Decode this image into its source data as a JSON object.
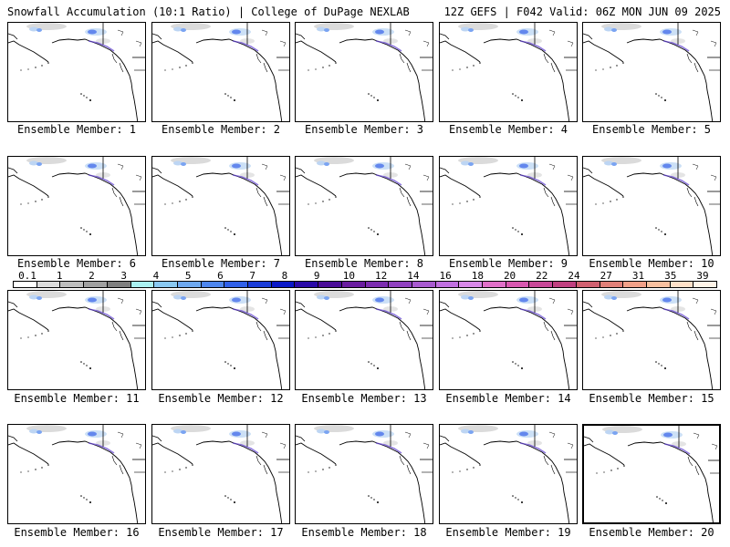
{
  "header": {
    "title": "Snowfall Accumulation (10:1 Ratio) | College of DuPage NEXLAB",
    "run_info": "12Z GEFS | F042 Valid: 06Z MON JUN 09 2025"
  },
  "panel_label_prefix": "Ensemble Member:",
  "members": [
    {
      "label": "Ensemble Member: 1"
    },
    {
      "label": "Ensemble Member: 2"
    },
    {
      "label": "Ensemble Member: 3"
    },
    {
      "label": "Ensemble Member: 4"
    },
    {
      "label": "Ensemble Member: 5"
    },
    {
      "label": "Ensemble Member: 6"
    },
    {
      "label": "Ensemble Member: 7"
    },
    {
      "label": "Ensemble Member: 8"
    },
    {
      "label": "Ensemble Member: 9"
    },
    {
      "label": "Ensemble Member: 10"
    },
    {
      "label": "Ensemble Member: 11"
    },
    {
      "label": "Ensemble Member: 12"
    },
    {
      "label": "Ensemble Member: 13"
    },
    {
      "label": "Ensemble Member: 14"
    },
    {
      "label": "Ensemble Member: 15"
    },
    {
      "label": "Ensemble Member: 16"
    },
    {
      "label": "Ensemble Member: 17"
    },
    {
      "label": "Ensemble Member: 18"
    },
    {
      "label": "Ensemble Member: 19"
    },
    {
      "label": "Ensemble Member: 20",
      "selected": true
    }
  ],
  "legend": {
    "ticks": [
      "0.1",
      "1",
      "2",
      "3",
      "4",
      "5",
      "6",
      "7",
      "8",
      "9",
      "10",
      "12",
      "14",
      "16",
      "18",
      "20",
      "22",
      "24",
      "27",
      "31",
      "35",
      "39"
    ],
    "colors": [
      "#ffffff",
      "#dcdcdc",
      "#bebebe",
      "#a0a0a0",
      "#7f7f7f",
      "#aaf0f0",
      "#8ac8f0",
      "#6ea8ef",
      "#4e86ee",
      "#3060e8",
      "#1a3cd8",
      "#0a18c8",
      "#2a0aa8",
      "#4a0c98",
      "#6a1ca0",
      "#7c2cb0",
      "#9040c0",
      "#a85ad0",
      "#c070e0",
      "#d888e8",
      "#e070c8",
      "#d858b0",
      "#c84898",
      "#c04080",
      "#d06070",
      "#e08078",
      "#f0a088",
      "#f8c0a0",
      "#ffe0c8",
      "#fff4e8"
    ]
  }
}
